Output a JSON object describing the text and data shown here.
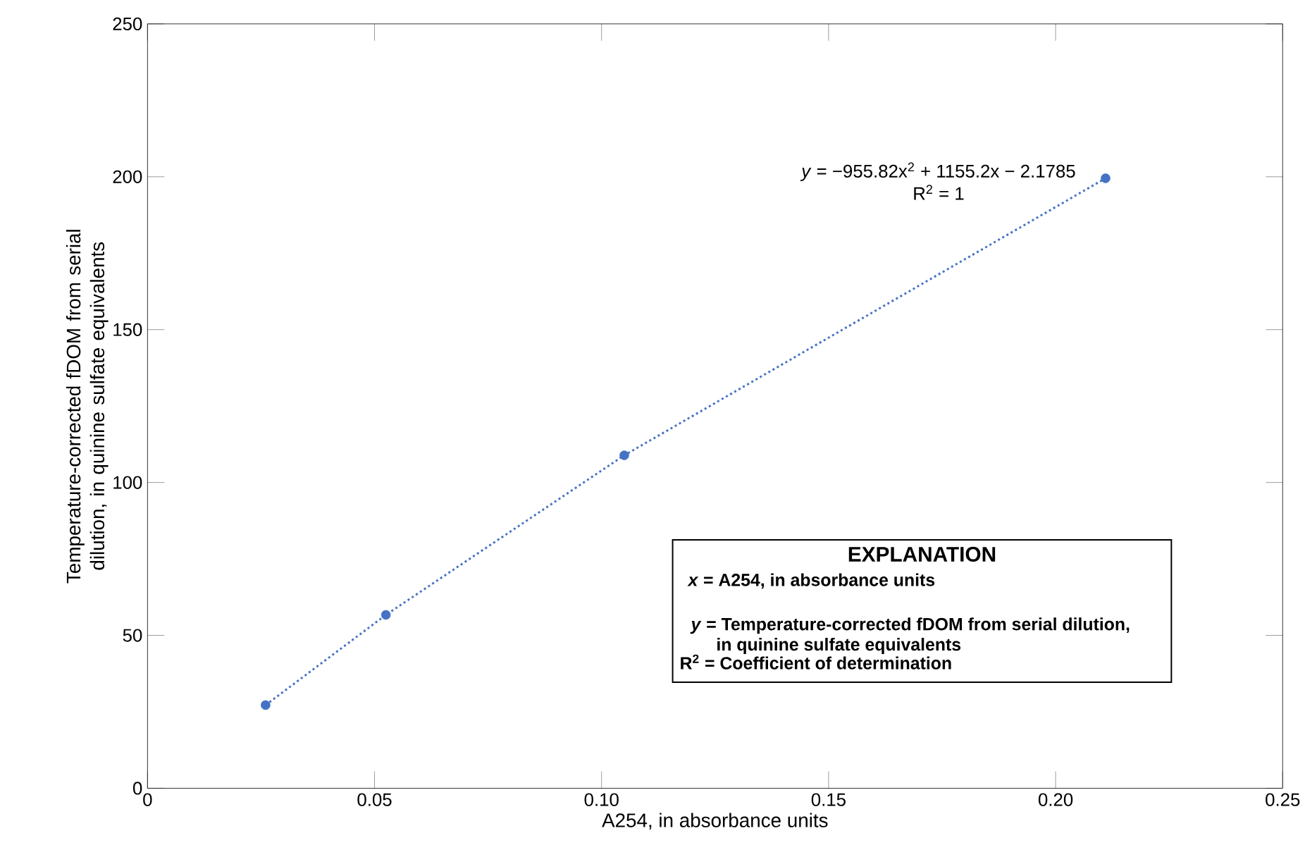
{
  "chart_data": {
    "type": "scatter",
    "xlabel": "A254, in absorbance units",
    "ylabel": "Temperature-corrected fDOM from serial dilution, in quinine sulfate equivalents",
    "series": [
      {
        "type": "line",
        "color": "#4472c4",
        "line_style": "dotted",
        "marker": "none",
        "x": [
          0.026,
          0.0525,
          0.105,
          0.211
        ],
        "values": [
          27.2,
          56.7,
          108.9,
          199.5
        ]
      },
      {
        "color": "#4472c4",
        "marker": "circle",
        "x": [
          0.026,
          0.0525,
          0.105,
          0.211
        ],
        "values": [
          27.2,
          56.7,
          108.9,
          199.5
        ]
      }
    ],
    "xlim": [
      0,
      0.25
    ],
    "ylim": [
      0,
      250
    ],
    "xticks": [
      0,
      0.05,
      {
        "value": 0.1,
        "label": "0.10"
      },
      0.15,
      {
        "value": 0.2,
        "label": "0.20"
      },
      0.25
    ],
    "yticks": [
      0,
      50,
      100,
      150,
      200,
      250
    ],
    "grid": false,
    "annotations": [
      "*y* = −955.82x$^{2}$ + 1155.2x − 2.1785",
      "R$^{2}$ = 1",
      "EXPLANATION",
      "*x* = A254, in absorbance units",
      "*y* = Temperature-corrected fDOM from serial dilution, in quinine sulfate equivalents",
      "R$^{2}$ =  Coefficient of determination"
    ]
  }
}
